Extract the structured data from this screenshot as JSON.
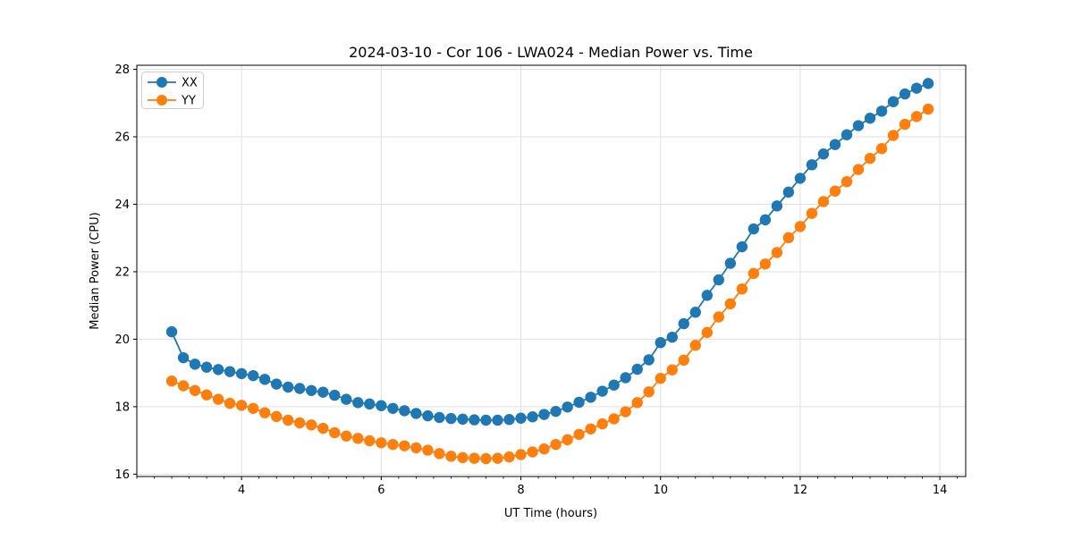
{
  "window": {
    "title": "2024-03-10 - Cor 106 - LWA024 - Median Power vs. Time"
  },
  "chart_data": {
    "type": "line",
    "title": "2024-03-10 - Cor 106 - LWA024 - Median Power vs. Time",
    "xlabel": "UT Time (hours)",
    "ylabel": "Median Power (CPU)",
    "xlim": [
      2.5,
      14.37
    ],
    "ylim": [
      15.93,
      28.12
    ],
    "x_major_ticks": [
      4,
      6,
      8,
      10,
      12,
      14
    ],
    "x_minor_tick_step": 0.25,
    "y_major_ticks": [
      16,
      18,
      20,
      22,
      24,
      26,
      28
    ],
    "grid": "major",
    "background_color": "#ffffff",
    "grid_color": "#e0e0e0",
    "spine_color": "#000000",
    "legend": {
      "position": "upper-left"
    },
    "marker": "o",
    "x": [
      3,
      3.167,
      3.333,
      3.5,
      3.667,
      3.833,
      4,
      4.167,
      4.333,
      4.5,
      4.667,
      4.833,
      5,
      5.167,
      5.333,
      5.5,
      5.667,
      5.833,
      6,
      6.167,
      6.333,
      6.5,
      6.667,
      6.833,
      7,
      7.167,
      7.333,
      7.5,
      7.667,
      7.833,
      8,
      8.167,
      8.333,
      8.5,
      8.667,
      8.833,
      9,
      9.167,
      9.333,
      9.5,
      9.667,
      9.833,
      10,
      10.167,
      10.333,
      10.5,
      10.667,
      10.833,
      11,
      11.167,
      11.333,
      11.5,
      11.667,
      11.833,
      12,
      12.167,
      12.333,
      12.5,
      12.667,
      12.833,
      13,
      13.167,
      13.333,
      13.5,
      13.667,
      13.833
    ],
    "series": [
      {
        "name": "XX",
        "color": "#1f77b4",
        "values": [
          20.22,
          19.45,
          19.26,
          19.17,
          19.1,
          19.04,
          18.98,
          18.92,
          18.81,
          18.67,
          18.58,
          18.54,
          18.48,
          18.43,
          18.34,
          18.22,
          18.12,
          18.08,
          18.03,
          17.95,
          17.88,
          17.8,
          17.73,
          17.68,
          17.65,
          17.63,
          17.61,
          17.6,
          17.6,
          17.62,
          17.66,
          17.7,
          17.77,
          17.86,
          17.99,
          18.13,
          18.28,
          18.46,
          18.64,
          18.86,
          19.11,
          19.39,
          19.9,
          20.06,
          20.46,
          20.8,
          21.3,
          21.76,
          22.25,
          22.74,
          23.27,
          23.54,
          23.95,
          24.36,
          24.77,
          25.17,
          25.49,
          25.77,
          26.06,
          26.33,
          26.55,
          26.76,
          27.04,
          27.27,
          27.44,
          27.58
        ]
      },
      {
        "name": "YY",
        "color": "#ff7f0e",
        "values": [
          18.76,
          18.62,
          18.48,
          18.35,
          18.22,
          18.1,
          18.04,
          17.95,
          17.82,
          17.71,
          17.6,
          17.52,
          17.46,
          17.36,
          17.23,
          17.13,
          17.06,
          16.99,
          16.93,
          16.88,
          16.84,
          16.78,
          16.71,
          16.61,
          16.53,
          16.49,
          16.47,
          16.46,
          16.47,
          16.51,
          16.58,
          16.66,
          16.75,
          16.88,
          17.02,
          17.18,
          17.34,
          17.49,
          17.64,
          17.85,
          18.12,
          18.44,
          18.84,
          19.09,
          19.38,
          19.82,
          20.2,
          20.66,
          21.05,
          21.49,
          21.95,
          22.23,
          22.57,
          23.01,
          23.34,
          23.73,
          24.08,
          24.39,
          24.67,
          25.03,
          25.36,
          25.65,
          26.04,
          26.37,
          26.6,
          26.82
        ]
      }
    ]
  }
}
